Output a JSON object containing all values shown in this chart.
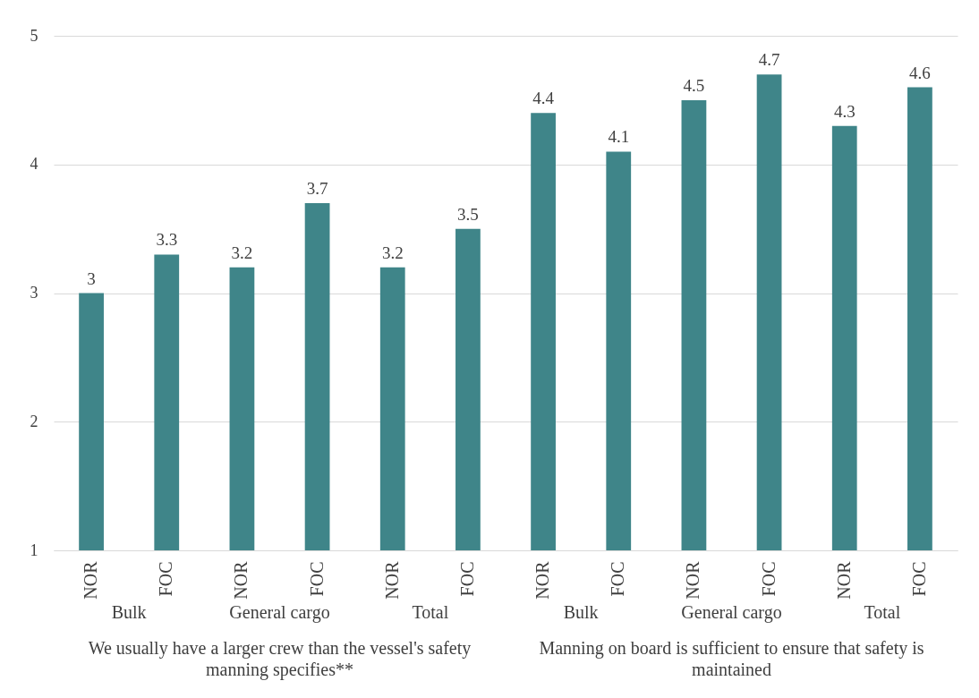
{
  "chart_data": {
    "type": "bar",
    "categories": [
      "NOR",
      "FOC",
      "NOR",
      "FOC",
      "NOR",
      "FOC",
      "NOR",
      "FOC",
      "NOR",
      "FOC",
      "NOR",
      "FOC"
    ],
    "values": [
      3,
      3.3,
      3.2,
      3.7,
      3.2,
      3.5,
      4.4,
      4.1,
      4.5,
      4.7,
      4.3,
      4.6
    ],
    "color": "#3f8589",
    "ylim": [
      1,
      5
    ],
    "yticks": [
      1,
      2,
      3,
      4,
      5
    ],
    "grid": "y",
    "data_labels": true,
    "annotations": [
      "Bulk",
      "General cargo",
      "Total",
      "Bulk",
      "General cargo",
      "Total",
      "We usually have a larger crew than the vessel's safety manning specifies**",
      "Manning on board is sufficient to ensure that safety is maintained"
    ]
  }
}
